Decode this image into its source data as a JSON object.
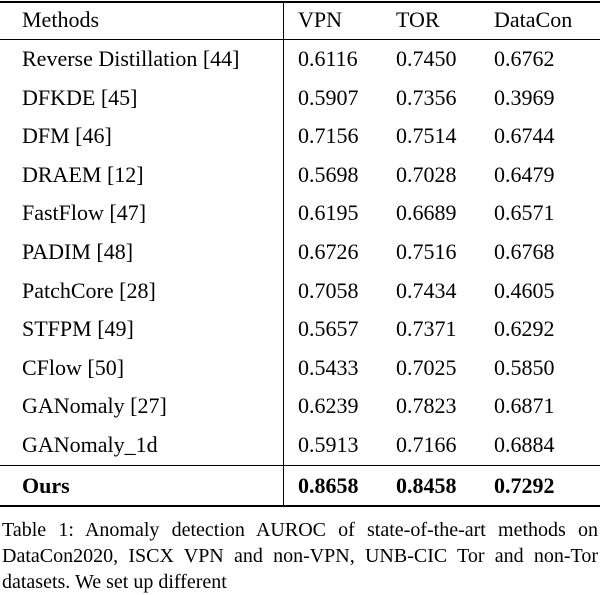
{
  "table": {
    "header": [
      "Methods",
      "VPN",
      "TOR",
      "DataCon"
    ],
    "rows": [
      [
        "Reverse Distillation [44]",
        "0.6116",
        "0.7450",
        "0.6762"
      ],
      [
        "DFKDE [45]",
        "0.5907",
        "0.7356",
        "0.3969"
      ],
      [
        "DFM [46]",
        "0.7156",
        "0.7514",
        "0.6744"
      ],
      [
        "DRAEM [12]",
        "0.5698",
        "0.7028",
        "0.6479"
      ],
      [
        "FastFlow [47]",
        "0.6195",
        "0.6689",
        "0.6571"
      ],
      [
        "PADIM [48]",
        "0.6726",
        "0.7516",
        "0.6768"
      ],
      [
        "PatchCore [28]",
        "0.7058",
        "0.7434",
        "0.4605"
      ],
      [
        "STFPM [49]",
        "0.5657",
        "0.7371",
        "0.6292"
      ],
      [
        "CFlow [50]",
        "0.5433",
        "0.7025",
        "0.5850"
      ],
      [
        "GANomaly [27]",
        "0.6239",
        "0.7823",
        "0.6871"
      ],
      [
        "GANomaly_1d",
        "0.5913",
        "0.7166",
        "0.6884"
      ]
    ],
    "ours": [
      "Ours",
      "0.8658",
      "0.8458",
      "0.7292"
    ]
  },
  "caption": "Table 1: Anomaly detection AUROC of state-of-the-art methods on DataCon2020, ISCX VPN and non-VPN, UNB-CIC Tor and non-Tor datasets. We set up different"
}
